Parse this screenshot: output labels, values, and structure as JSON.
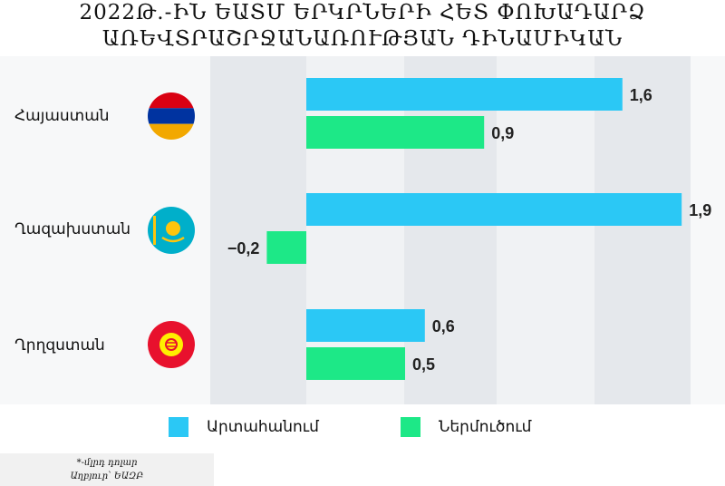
{
  "title_line1": "2022Թ.-ԻՆ ԵԱՏՄ ԵՐԿՐՆԵՐԻ ՀԵՏ ՓՈԽԱԴԱՐՁ",
  "title_line2": "ԱՌԵՎՏՐԱՇՐՋԱՆԱՌՈՒԹՅԱՆ ԴԻՆԱՄԻԿԱՆ",
  "footnote_line1": "*-մլրդ դոլար",
  "footnote_line2": "Աղբյուր՝ ԵԱԶԲ",
  "colors": {
    "export": "#2bc8f5",
    "import": "#1de887",
    "band_dark": "#e5e8ec",
    "band_light": "#f0f2f4"
  },
  "chart_data": {
    "type": "bar",
    "orientation": "horizontal",
    "categories": [
      "Հայաստան",
      "Ղազախստան",
      "Ղրղզստան"
    ],
    "series": [
      {
        "name": "Արտահանում",
        "values": [
          1.6,
          1.9,
          0.6
        ],
        "labels": [
          "1,6",
          "1,9",
          "0,6"
        ]
      },
      {
        "name": "Ներմուծում",
        "values": [
          0.9,
          -0.2,
          0.5
        ],
        "labels": [
          "0,9",
          "−0,2",
          "0,5"
        ]
      }
    ],
    "legend": "bottom"
  },
  "flags": [
    "armenia-flag-icon",
    "kazakhstan-flag-icon",
    "kyrgyzstan-flag-icon"
  ]
}
